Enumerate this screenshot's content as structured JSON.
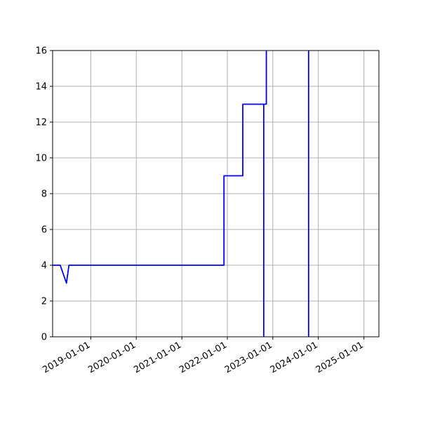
{
  "chart_data": {
    "type": "line",
    "title": "",
    "xlabel": "",
    "ylabel": "",
    "x_axis_type": "date",
    "xlim": [
      "2018-03-01",
      "2025-05-01"
    ],
    "ylim": [
      0,
      16
    ],
    "grid": true,
    "x_ticks": [
      "2019-01-01",
      "2020-01-01",
      "2021-01-01",
      "2022-01-01",
      "2023-01-01",
      "2024-01-01",
      "2025-01-01"
    ],
    "y_ticks": [
      0,
      2,
      4,
      6,
      8,
      10,
      12,
      14,
      16
    ],
    "series": [
      {
        "color": "#0000ff",
        "points": [
          [
            "2018-03-01",
            4
          ],
          [
            "2018-05-01",
            4
          ],
          [
            "2018-06-20",
            3
          ],
          [
            "2018-07-10",
            4
          ],
          [
            "2021-12-05",
            4
          ],
          [
            "2021-12-05",
            9
          ],
          [
            "2022-05-05",
            9
          ],
          [
            "2022-05-05",
            13
          ],
          [
            "2022-10-20",
            13
          ],
          [
            "2022-10-20",
            0
          ],
          [
            "2022-10-20",
            13
          ],
          [
            "2022-11-10",
            13
          ],
          [
            "2022-11-10",
            16
          ],
          [
            "2022-11-10",
            16
          ],
          [
            null,
            null
          ],
          [
            "2023-10-15",
            0
          ],
          [
            "2023-10-15",
            16
          ]
        ]
      }
    ]
  }
}
